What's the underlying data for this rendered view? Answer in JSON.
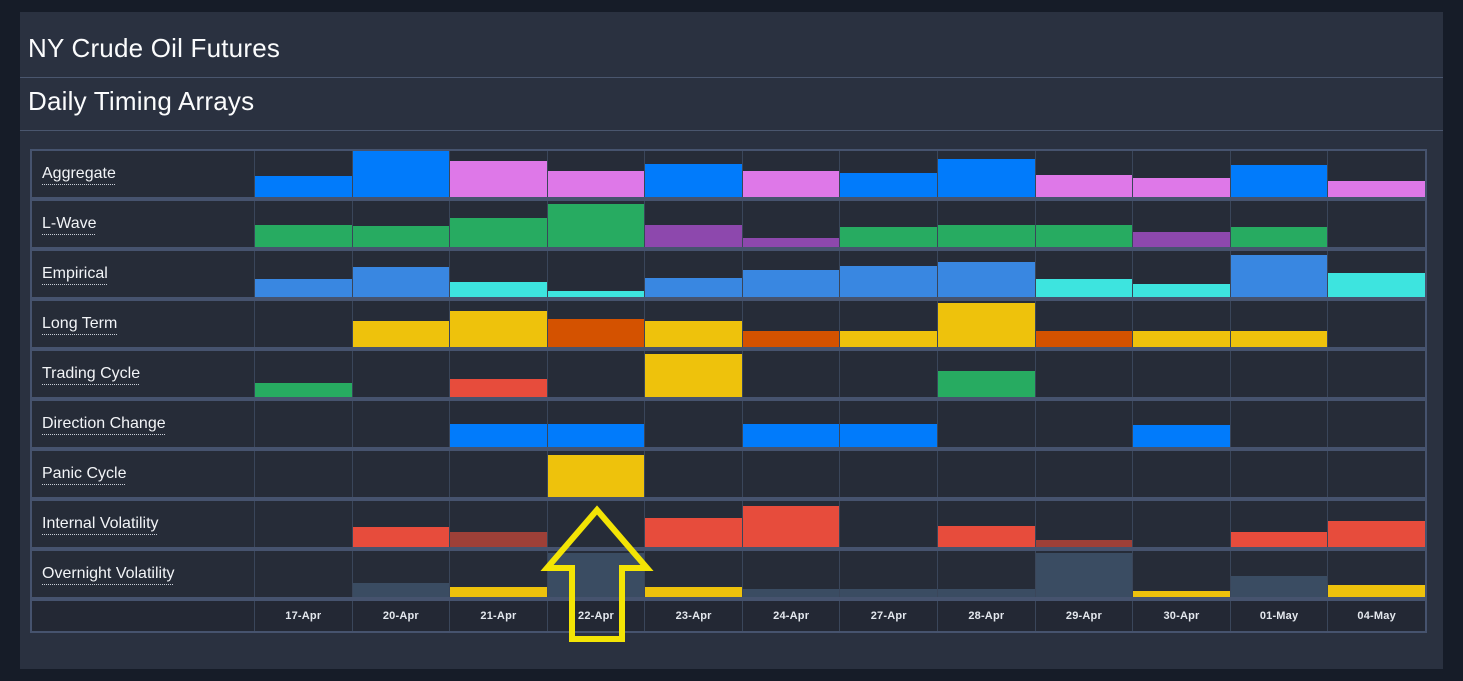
{
  "header": {
    "instrument_title": "NY Crude Oil Futures",
    "view_title": "Daily Timing Arrays"
  },
  "colors": {
    "blue": "#017bfb",
    "steelblue": "#3987e1",
    "cyan": "#3de4df",
    "green": "#27ab61",
    "violet": "#de78e8",
    "purple": "#8d48ad",
    "yellow": "#eec20c",
    "orange": "#d45200",
    "red": "#e74c3c",
    "maroon": "#9e4038",
    "slate": "#3a4c62",
    "arrow_highlight": "#f3e405",
    "cell_background": "#262c38",
    "grid_border": "#46536e"
  },
  "highlight": {
    "date": "22-Apr",
    "symbol": "up-arrow"
  },
  "chart_data": {
    "type": "heatmap",
    "title": "NY Crude Oil Futures - Daily Timing Arrays",
    "columns": [
      "17-Apr",
      "20-Apr",
      "21-Apr",
      "22-Apr",
      "23-Apr",
      "24-Apr",
      "27-Apr",
      "28-Apr",
      "29-Apr",
      "30-Apr",
      "01-May",
      "04-May"
    ],
    "rows": [
      {
        "label": "Aggregate",
        "cells": [
          {
            "color": "blue",
            "height": 0.45
          },
          {
            "color": "blue",
            "height": 1.0
          },
          {
            "color": "violet",
            "height": 0.78
          },
          {
            "color": "violet",
            "height": 0.55
          },
          {
            "color": "blue",
            "height": 0.72
          },
          {
            "color": "violet",
            "height": 0.55
          },
          {
            "color": "blue",
            "height": 0.52
          },
          {
            "color": "blue",
            "height": 0.82
          },
          {
            "color": "violet",
            "height": 0.48
          },
          {
            "color": "violet",
            "height": 0.4
          },
          {
            "color": "blue",
            "height": 0.7
          },
          {
            "color": "violet",
            "height": 0.35
          }
        ]
      },
      {
        "label": "L-Wave",
        "cells": [
          {
            "color": "green",
            "height": 0.48
          },
          {
            "color": "green",
            "height": 0.46
          },
          {
            "color": "green",
            "height": 0.62
          },
          {
            "color": "green",
            "height": 0.93
          },
          {
            "color": "purple",
            "height": 0.48
          },
          {
            "color": "purple",
            "height": 0.2
          },
          {
            "color": "green",
            "height": 0.44
          },
          {
            "color": "green",
            "height": 0.48
          },
          {
            "color": "green",
            "height": 0.48
          },
          {
            "color": "purple",
            "height": 0.33
          },
          {
            "color": "green",
            "height": 0.44
          },
          null
        ]
      },
      {
        "label": "Empirical",
        "cells": [
          {
            "color": "steelblue",
            "height": 0.38
          },
          {
            "color": "steelblue",
            "height": 0.65
          },
          {
            "color": "cyan",
            "height": 0.32
          },
          {
            "color": "cyan",
            "height": 0.13
          },
          {
            "color": "steelblue",
            "height": 0.4
          },
          {
            "color": "steelblue",
            "height": 0.58
          },
          {
            "color": "steelblue",
            "height": 0.66
          },
          {
            "color": "steelblue",
            "height": 0.76
          },
          {
            "color": "cyan",
            "height": 0.38
          },
          {
            "color": "cyan",
            "height": 0.28
          },
          {
            "color": "steelblue",
            "height": 0.9
          },
          {
            "color": "cyan",
            "height": 0.52
          }
        ]
      },
      {
        "label": "Long Term",
        "cells": [
          null,
          {
            "color": "yellow",
            "height": 0.55
          },
          {
            "color": "yellow",
            "height": 0.78
          },
          {
            "color": "orange",
            "height": 0.6
          },
          {
            "color": "yellow",
            "height": 0.55
          },
          {
            "color": "orange",
            "height": 0.35
          },
          {
            "color": "yellow",
            "height": 0.35
          },
          {
            "color": "yellow",
            "height": 0.95
          },
          {
            "color": "orange",
            "height": 0.35
          },
          {
            "color": "yellow",
            "height": 0.35
          },
          {
            "color": "yellow",
            "height": 0.35
          },
          null
        ]
      },
      {
        "label": "Trading Cycle",
        "cells": [
          {
            "color": "green",
            "height": 0.3
          },
          null,
          {
            "color": "red",
            "height": 0.38
          },
          null,
          {
            "color": "yellow",
            "height": 0.92
          },
          null,
          null,
          {
            "color": "green",
            "height": 0.55
          },
          null,
          null,
          null,
          null
        ]
      },
      {
        "label": "Direction Change",
        "cells": [
          null,
          null,
          {
            "color": "blue",
            "height": 0.5
          },
          {
            "color": "blue",
            "height": 0.5
          },
          null,
          {
            "color": "blue",
            "height": 0.5
          },
          {
            "color": "blue",
            "height": 0.5
          },
          null,
          null,
          {
            "color": "blue",
            "height": 0.48
          },
          null,
          null
        ]
      },
      {
        "label": "Panic Cycle",
        "cells": [
          null,
          null,
          null,
          {
            "color": "yellow",
            "height": 0.9
          },
          null,
          null,
          null,
          null,
          null,
          null,
          null,
          null
        ]
      },
      {
        "label": "Internal Volatility",
        "cells": [
          null,
          {
            "color": "red",
            "height": 0.42
          },
          {
            "color": "maroon",
            "height": 0.33
          },
          null,
          {
            "color": "red",
            "height": 0.63
          },
          {
            "color": "red",
            "height": 0.88
          },
          null,
          {
            "color": "red",
            "height": 0.45
          },
          {
            "color": "maroon",
            "height": 0.14
          },
          null,
          {
            "color": "red",
            "height": 0.33
          },
          {
            "color": "red",
            "height": 0.55
          }
        ]
      },
      {
        "label": "Overnight Volatility",
        "cells": [
          null,
          {
            "color": "slate",
            "height": 0.3
          },
          {
            "color": "yellow",
            "height": 0.22
          },
          {
            "color": "slate",
            "height": 0.95
          },
          {
            "color": "yellow",
            "height": 0.22
          },
          {
            "color": "slate",
            "height": 0.16
          },
          {
            "color": "slate",
            "height": 0.16
          },
          {
            "color": "slate",
            "height": 0.16
          },
          {
            "color": "slate",
            "height": 0.95
          },
          {
            "color": "yellow",
            "height": 0.12
          },
          {
            "color": "slate",
            "height": 0.45
          },
          {
            "color": "yellow",
            "height": 0.25
          }
        ]
      }
    ]
  }
}
